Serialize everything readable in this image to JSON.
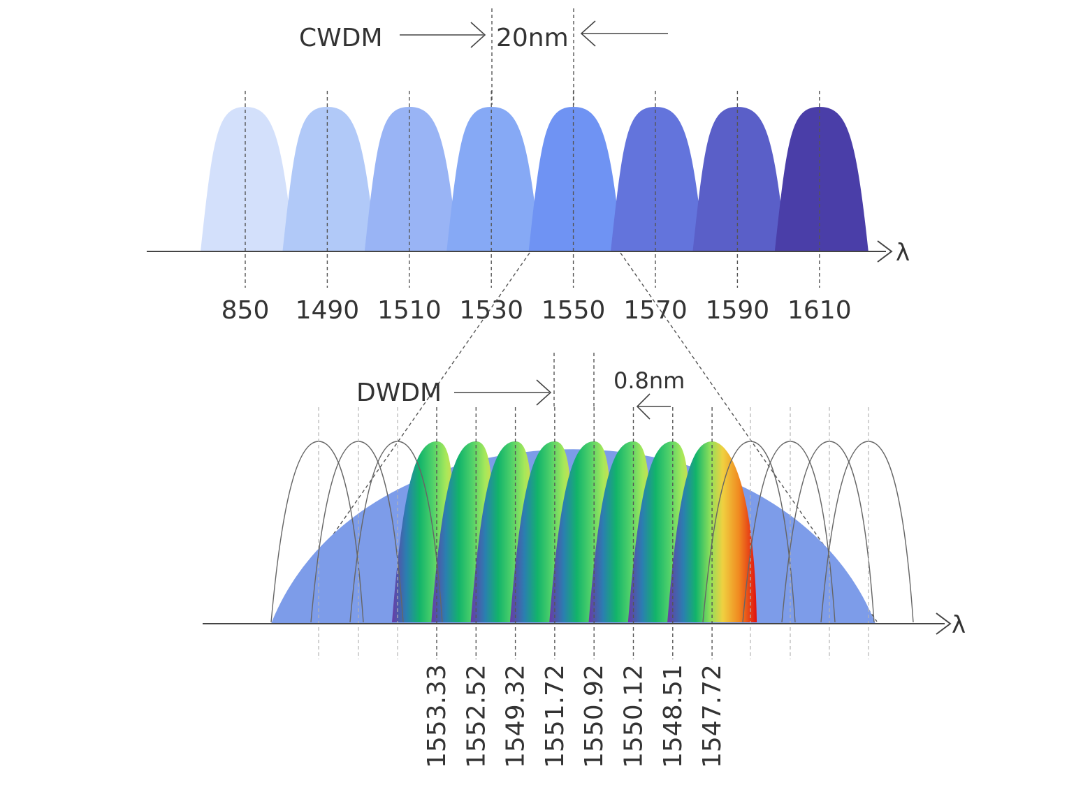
{
  "cwdm": {
    "label": "CWDM",
    "spacing_label": "20nm",
    "axis_symbol": "λ",
    "channels": [
      "850",
      "1490",
      "1510",
      "1530",
      "1550",
      "1570",
      "1590",
      "1610"
    ],
    "colors": [
      "#d3e0fb",
      "#b1c9f8",
      "#99b4f5",
      "#86a9f5",
      "#6f93f3",
      "#6374dc",
      "#5a5fc8",
      "#4a3ea8"
    ]
  },
  "dwdm": {
    "label": "DWDM",
    "spacing_label": "0.8nm",
    "axis_symbol": "λ",
    "channels": [
      "1553.33",
      "1552.52",
      "1549.32",
      "1551.72",
      "1550.92",
      "1550.12",
      "1548.51",
      "1547.72"
    ],
    "envelope_color": "#7d9ce9",
    "outline_color": "#666666"
  }
}
